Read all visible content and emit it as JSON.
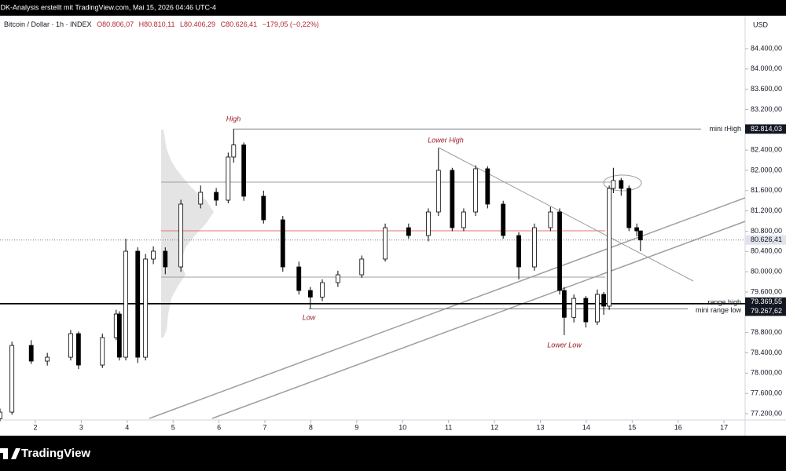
{
  "top_bar": {
    "text": "IDK-Analysis erstellt mit TradingView.com, Mai 15, 2026 04:46 UTC-4"
  },
  "header": {
    "symbol": "Bitcoin / Dollar · 1h · INDEX",
    "open": "O80.806,07",
    "high": "H80.810,11",
    "low": "L80.406,29",
    "close": "C80.626,41",
    "change": "−179,05 (−0,22%)"
  },
  "currency": "USD",
  "annotations": [
    "High",
    "Lower High",
    "Low",
    "Lower Low"
  ],
  "chart_data": {
    "type": "candlestick",
    "up_color": "#ffffff",
    "down_color": "#000000",
    "xlim": [
      1.23,
      17.46
    ],
    "xticks": [
      2,
      3,
      4,
      5,
      6,
      7,
      8,
      9,
      10,
      11,
      12,
      13,
      14,
      15,
      16,
      17
    ],
    "ylim": [
      77076,
      85019
    ],
    "yticks": [
      {
        "value": 77200,
        "label": "77.200,00"
      },
      {
        "value": 77600,
        "label": "77.600,00"
      },
      {
        "value": 78000,
        "label": "78.000,00"
      },
      {
        "value": 78400,
        "label": "78.400,00"
      },
      {
        "value": 78800,
        "label": "78.800,00"
      },
      {
        "value": 79200,
        "label": "79.200,00"
      },
      {
        "value": 79600,
        "label": "79.600,00"
      },
      {
        "value": 80000,
        "label": "80.000,00"
      },
      {
        "value": 80400,
        "label": "80.400,00"
      },
      {
        "value": 80800,
        "label": "80.800,00"
      },
      {
        "value": 81200,
        "label": "81.200,00"
      },
      {
        "value": 81600,
        "label": "81.600,00"
      },
      {
        "value": 82000,
        "label": "82.000,00"
      },
      {
        "value": 82400,
        "label": "82.400,00"
      },
      {
        "value": 82800,
        "label": "82.800,00"
      },
      {
        "value": 83200,
        "label": "83.200,00"
      },
      {
        "value": 83600,
        "label": "83.600,00"
      },
      {
        "value": 84000,
        "label": "84.000,00"
      },
      {
        "value": 84400,
        "label": "84.400,00"
      }
    ],
    "x": [
      1.23,
      1.49,
      1.91,
      2.26,
      2.77,
      2.94,
      3.46,
      3.76,
      3.83,
      3.97,
      4.23,
      4.4,
      4.57,
      4.83,
      5.17,
      5.6,
      5.94,
      6.2,
      6.32,
      6.54,
      6.97,
      7.39,
      7.74,
      7.99,
      8.25,
      8.59,
      9.11,
      9.62,
      10.13,
      10.56,
      10.78,
      11.08,
      11.33,
      11.59,
      11.85,
      12.19,
      12.53,
      12.87,
      13.22,
      13.42,
      13.52,
      13.73,
      13.99,
      14.24,
      14.38,
      14.5,
      14.59,
      14.76,
      14.93,
      15.1,
      15.18
    ],
    "open": [
      77100,
      77230,
      78546,
      78237,
      78314,
      78779,
      78159,
      78701,
      79166,
      78314,
      80405,
      78314,
      80250,
      80405,
      80095,
      81334,
      81566,
      81411,
      82263,
      82500,
      81489,
      81024,
      80095,
      79630,
      79500,
      79785,
      79940,
      80250,
      80869,
      80714,
      81179,
      82000,
      80869,
      81179,
      82031,
      81334,
      80714,
      80095,
      80869,
      81179,
      79630,
      79100,
      79475,
      79011,
      79553,
      79321,
      81643,
      81800,
      81643,
      80869,
      80806.07
    ],
    "high": [
      77300,
      78620,
      78650,
      78400,
      78850,
      78820,
      78780,
      79250,
      79220,
      80650,
      80480,
      80350,
      80500,
      80480,
      81420,
      81700,
      81650,
      82350,
      82814.03,
      82550,
      81600,
      81100,
      80200,
      79700,
      79850,
      80020,
      80320,
      80950,
      80950,
      81250,
      82440,
      82050,
      81250,
      82100,
      82080,
      81400,
      80780,
      80950,
      81280,
      81250,
      79700,
      79550,
      79520,
      79650,
      79600,
      81700,
      82050,
      81850,
      81700,
      80950,
      80810.11
    ],
    "low": [
      77050,
      77180,
      78180,
      78150,
      78250,
      78080,
      78100,
      78650,
      78250,
      78250,
      78200,
      78250,
      80150,
      79950,
      80000,
      81250,
      81300,
      81350,
      82150,
      81400,
      80950,
      80000,
      79550,
      79267.62,
      79420,
      79700,
      79880,
      80200,
      80650,
      80600,
      81100,
      80800,
      80800,
      81100,
      81250,
      80650,
      79850,
      80020,
      80800,
      79550,
      78750,
      79000,
      78900,
      78950,
      79150,
      79250,
      81550,
      81500,
      80800,
      80700,
      80406.29
    ],
    "close": [
      77230,
      78546,
      78237,
      78314,
      78779,
      78159,
      78701,
      79166,
      78314,
      80405,
      78314,
      80250,
      80405,
      80095,
      81334,
      81566,
      81411,
      82263,
      82500,
      81489,
      81024,
      80095,
      79630,
      79500,
      79785,
      79940,
      80250,
      80869,
      80714,
      81179,
      82000,
      80869,
      81179,
      82031,
      81334,
      80714,
      80095,
      80869,
      81179,
      79630,
      79100,
      79475,
      79011,
      79553,
      79321,
      81643,
      81800,
      81643,
      80869,
      80806.07,
      80626.41
    ],
    "price_lines": [
      {
        "name": "mini rHigh",
        "value": 82814.03,
        "value_label": "82.814,03"
      },
      {
        "name": "range high",
        "value": 79369.55,
        "value_label": "79.369,55"
      },
      {
        "name": "mini range low",
        "value": 79267.62,
        "value_label": "79.267,62"
      }
    ],
    "last_price": {
      "value": 80626.41,
      "value_label": "80.626,41"
    }
  },
  "footer": {
    "brand": "TradingView"
  }
}
